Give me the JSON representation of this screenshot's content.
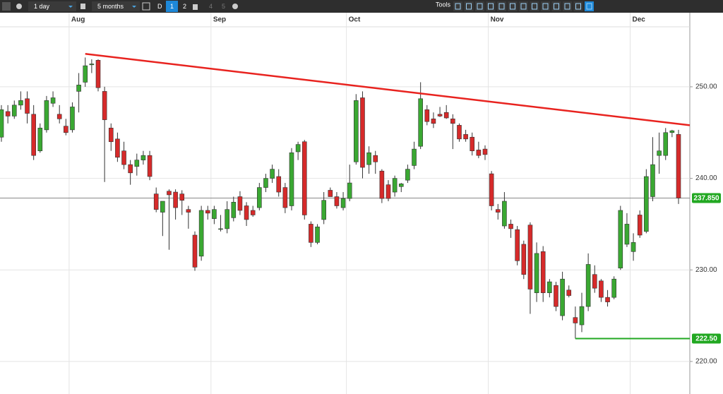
{
  "toolbar": {
    "interval": "1 day",
    "range": "5 months",
    "buttons": [
      "D",
      "1",
      "2",
      "4",
      "5"
    ],
    "tools": "Tools"
  },
  "chart_data": {
    "type": "candlestick",
    "categories": [
      null,
      null,
      null,
      null,
      null,
      null,
      null,
      null,
      null,
      null,
      null,
      "Aug",
      null,
      null,
      null,
      null,
      null,
      null,
      null,
      null,
      null,
      null,
      null,
      null,
      null,
      null,
      null,
      null,
      null,
      null,
      null,
      null,
      null,
      "Sep",
      null,
      null,
      null,
      null,
      null,
      null,
      null,
      null,
      null,
      null,
      null,
      null,
      null,
      null,
      null,
      null,
      null,
      null,
      null,
      null,
      "Oct",
      null,
      null,
      null,
      null,
      null,
      null,
      null,
      null,
      null,
      null,
      null,
      null,
      null,
      null,
      null,
      null,
      null,
      null,
      null,
      null,
      null,
      "Nov",
      null,
      null,
      null,
      null,
      null,
      null,
      null,
      null,
      null,
      null,
      null,
      null,
      null,
      null,
      null,
      null,
      null,
      null,
      null,
      null,
      null,
      "Dec",
      null,
      null,
      null,
      null,
      null,
      null,
      null
    ],
    "open": [
      244.5,
      247.3,
      246.8,
      248,
      248.7,
      247,
      243,
      245.3,
      248.2,
      247,
      245.7,
      245.3,
      249.5,
      250.5,
      252.4,
      252.9,
      249.5,
      245.5,
      244.3,
      243,
      241.5,
      241.3,
      242,
      242.5,
      238.3,
      236.3,
      238.6,
      238.5,
      238.3,
      236.6,
      233.8,
      231.5,
      236.5,
      235.6,
      234.5,
      234.5,
      235.7,
      238,
      237,
      236.5,
      236.8,
      239,
      240,
      240.2,
      239,
      237,
      242.9,
      244,
      235,
      233,
      235.5,
      238.7,
      238,
      236.8,
      237.8,
      241.8,
      248.8,
      241.5,
      242.5,
      240.8,
      239.3,
      238.5,
      239.1,
      239.8,
      241.4,
      243.5,
      247.5,
      246.5,
      247,
      247.2,
      246.5,
      245.8,
      244.8,
      244.5,
      243.1,
      243.2,
      240.5,
      236.6,
      234.8,
      235,
      234.4,
      232.8,
      234.9,
      227.5,
      232,
      227.5,
      228.3,
      225,
      227.8,
      224.8,
      224,
      226,
      229.5,
      228.8,
      227,
      227,
      230.2,
      232.8,
      232,
      236,
      234.2,
      238,
      242.5,
      242.5,
      245,
      244.8
    ],
    "high": [
      248,
      248,
      248.5,
      249.5,
      249.5,
      248,
      246,
      249,
      249.5,
      248,
      246.5,
      248.3,
      251.5,
      253.2,
      253,
      253,
      250,
      246,
      245,
      244,
      242,
      242.7,
      243,
      243,
      239,
      237.5,
      238.8,
      238.8,
      238.7,
      237,
      234.2,
      237,
      237,
      237,
      236,
      237.5,
      238,
      238.6,
      237.4,
      237,
      239.5,
      240.5,
      241.5,
      241,
      239.5,
      243.3,
      244,
      244.2,
      235.3,
      235,
      238.5,
      239,
      238.5,
      238.5,
      241.5,
      249.2,
      249.5,
      243.5,
      243,
      241,
      239.8,
      240.3,
      239.5,
      241.5,
      244,
      250.5,
      248,
      247.2,
      247.8,
      248,
      247,
      246,
      245.3,
      245,
      244,
      243.6,
      240.8,
      237.2,
      238.5,
      235.5,
      234.8,
      233.2,
      235.2,
      233,
      232.6,
      229,
      228.7,
      229.8,
      228.3,
      226,
      227.5,
      231.8,
      230.5,
      229,
      227.8,
      229.3,
      237,
      236.2,
      234,
      236.5,
      241,
      244.5,
      245,
      245.5,
      245.3,
      245.3
    ],
    "low": [
      244,
      246,
      246.5,
      247.5,
      246,
      242,
      242.8,
      245,
      247.8,
      246,
      244.7,
      245,
      247.2,
      250,
      251.5,
      249.5,
      239.6,
      243,
      241.8,
      241,
      239.3,
      240.3,
      241.5,
      239.8,
      236.3,
      233.7,
      232.2,
      235.5,
      236,
      234.5,
      229.9,
      231,
      235.5,
      235,
      234.2,
      234,
      235.3,
      236,
      234.8,
      235.8,
      236.5,
      238.5,
      239.5,
      238,
      236.2,
      236.5,
      242,
      235.5,
      232.5,
      232.8,
      235,
      238,
      236.7,
      236.5,
      237.5,
      241.5,
      240,
      240.5,
      240.5,
      237.3,
      237.5,
      238,
      238.5,
      239.5,
      241,
      243.2,
      245.8,
      245.5,
      246.7,
      246.5,
      243.2,
      244,
      244,
      242.5,
      242.2,
      242,
      236.5,
      235.5,
      234.5,
      233.5,
      230.5,
      229,
      225.2,
      226.5,
      226.5,
      227,
      225.5,
      224.5,
      227,
      222.5,
      223.2,
      225.5,
      227.5,
      226.5,
      226,
      226.8,
      230,
      232.5,
      231,
      233.5,
      234,
      237.5,
      240.5,
      242,
      244.5,
      237.2
    ],
    "close": [
      247.5,
      246.8,
      248,
      248.5,
      247.1,
      242.5,
      245.5,
      248.5,
      248.8,
      246.5,
      245,
      247.8,
      250.2,
      252.3,
      252.5,
      249.9,
      246.4,
      244,
      242.3,
      241.5,
      240.6,
      242,
      242.5,
      240.2,
      236.6,
      237.5,
      238.2,
      236.8,
      237.6,
      236.3,
      230.3,
      236.5,
      236.2,
      236.6,
      234.5,
      236.6,
      237.4,
      236.5,
      235.5,
      236,
      239,
      240,
      241,
      238.5,
      236.8,
      242.8,
      243.7,
      236,
      233,
      234.7,
      237.6,
      238,
      237,
      237.8,
      239.5,
      248.5,
      241.2,
      242.8,
      241.8,
      237.8,
      237.8,
      240,
      239.4,
      241,
      243.2,
      248.7,
      246.2,
      246,
      246.8,
      246.6,
      246,
      244.3,
      244.3,
      243,
      242.5,
      242.6,
      237,
      236.3,
      237.5,
      234.5,
      231,
      229.5,
      227.9,
      231.8,
      227.5,
      228.7,
      226,
      229,
      227.2,
      224.2,
      226,
      230.6,
      228,
      227,
      226.5,
      229,
      236.5,
      235,
      233,
      233.8,
      240.2,
      241.5,
      243,
      245,
      245.2,
      237.85
    ],
    "up_color": "#3aa832",
    "down_color": "#d62a2a",
    "ylim": [
      216.6,
      256.55
    ],
    "yticks": [
      {
        "value": 220,
        "label": "220.00"
      },
      {
        "value": 230,
        "label": "230.00"
      },
      {
        "value": 240,
        "label": "240.00"
      },
      {
        "value": 250,
        "label": "250.00"
      }
    ],
    "grid": true,
    "trend_line": {
      "start": 253.6,
      "end": 245.8,
      "color": "#e8231f"
    },
    "support_line": {
      "value": 222.5,
      "label": "222.50",
      "color": "#22a822"
    },
    "last_price": {
      "value": 237.85,
      "label": "237.850",
      "color": "#22a822"
    }
  }
}
